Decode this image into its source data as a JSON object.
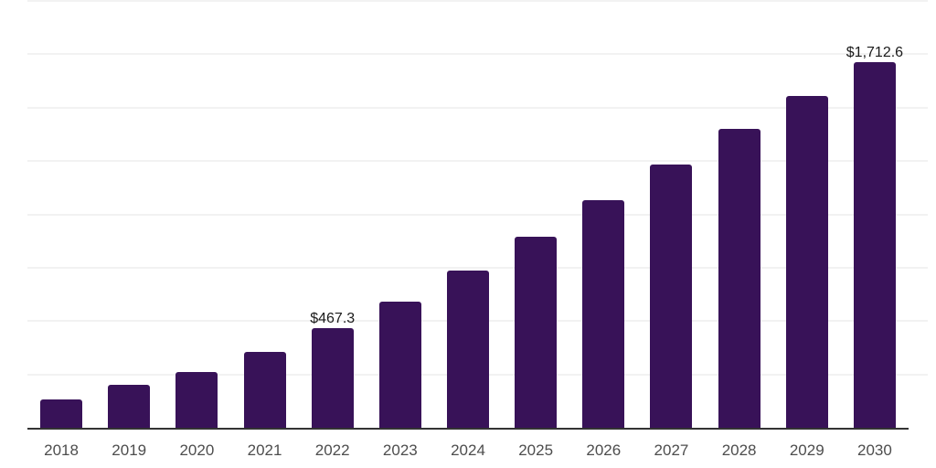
{
  "chart_data": {
    "type": "bar",
    "title": "",
    "xlabel": "",
    "ylabel": "",
    "categories": [
      "2018",
      "2019",
      "2020",
      "2021",
      "2022",
      "2023",
      "2024",
      "2025",
      "2026",
      "2027",
      "2028",
      "2029",
      "2030"
    ],
    "values": [
      132,
      201,
      261,
      354,
      467.3,
      589,
      735,
      897,
      1068,
      1234,
      1401,
      1554,
      1712.6
    ],
    "data_labels": {
      "2022": "$467.3",
      "2030": "$1,712.6"
    },
    "ylim": [
      0,
      2000
    ],
    "grid_step": 250,
    "grid": "horizontal",
    "legend": "none",
    "y_axis_labels_visible": false,
    "colors": {
      "bar": "#381258",
      "gridline": "#f2f2f2",
      "axis_line": "#333333",
      "tick_label": "#4d4d4d",
      "data_label": "#1a1a1a",
      "background": "#ffffff"
    }
  }
}
